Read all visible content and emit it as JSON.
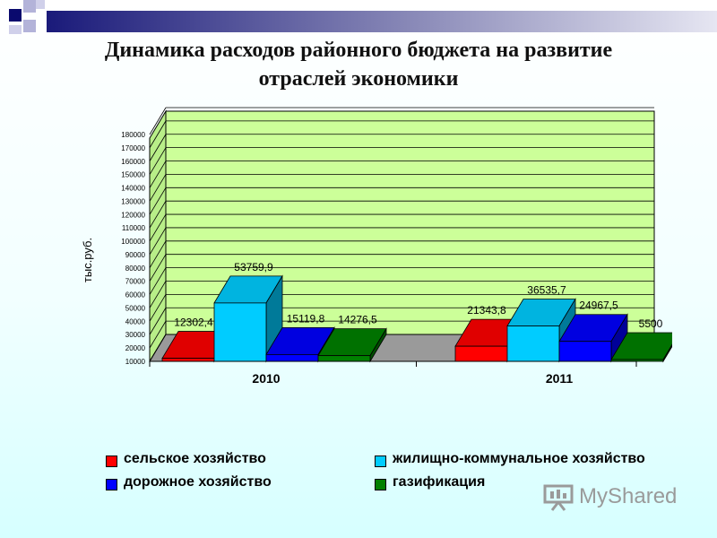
{
  "title": {
    "line1": "Динамика расходов районного бюджета на развитие",
    "line2": "отраслей экономики"
  },
  "watermark": "MyShared",
  "colors": {
    "deco_dark": "#0a0a6e",
    "deco_light": "#9999cc",
    "wall": "#ccff99",
    "floor": "#9a9a9a"
  },
  "chart_data": {
    "type": "bar",
    "ylabel": "тыс.руб.",
    "ylim": [
      10000,
      180000
    ],
    "ytick_step": 10000,
    "yticks": [
      "10000",
      "20000",
      "30000",
      "40000",
      "50000",
      "60000",
      "70000",
      "80000",
      "90000",
      "100000",
      "110000",
      "120000",
      "130000",
      "140000",
      "150000",
      "160000",
      "170000",
      "180000"
    ],
    "categories": [
      "2010",
      "2011"
    ],
    "grid": true,
    "legend_position": "bottom",
    "series": [
      {
        "name": "сельское хозяйство",
        "color": "#ff0000",
        "values": [
          12302.4,
          21343.8
        ],
        "labels": [
          "12302,4",
          "21343,8"
        ]
      },
      {
        "name": "жилищно-коммунальное хозяйство",
        "color": "#00ccff",
        "values": [
          53759.9,
          36535.7
        ],
        "labels": [
          "53759,9",
          "36535,7"
        ]
      },
      {
        "name": "дорожное хозяйство",
        "color": "#0000ff",
        "values": [
          15119.8,
          24967.5
        ],
        "labels": [
          "15119,8",
          "24967,5"
        ]
      },
      {
        "name": "газификация",
        "color": "#008000",
        "values": [
          14276.5,
          5500
        ],
        "labels": [
          "14276,5",
          "5500"
        ]
      }
    ]
  }
}
